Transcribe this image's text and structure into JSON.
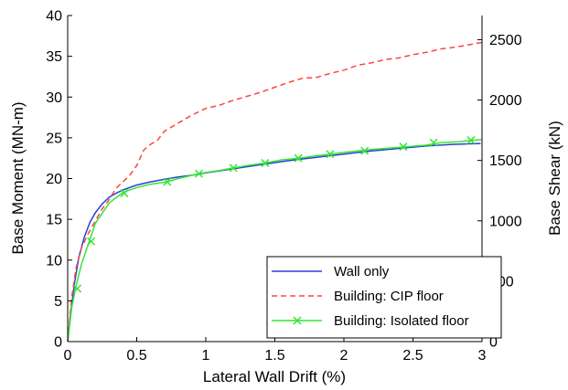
{
  "chart_data": {
    "type": "line",
    "xlabel": "Lateral Wall Drift (%)",
    "ylabel": "Base Moment (MN-m)",
    "y2label": "Base Shear (kN)",
    "xlim": [
      0,
      3
    ],
    "ylim": [
      0,
      40
    ],
    "y2lim": [
      0,
      2700
    ],
    "x_ticks": [
      0,
      0.5,
      1,
      1.5,
      2,
      2.5,
      3
    ],
    "x_tick_labels": [
      "0",
      "0.5",
      "1",
      "1.5",
      "2",
      "2.5",
      "3"
    ],
    "y_ticks": [
      0,
      5,
      10,
      15,
      20,
      25,
      30,
      35,
      40
    ],
    "y_tick_labels": [
      "0",
      "5",
      "10",
      "15",
      "20",
      "25",
      "30",
      "35",
      "40"
    ],
    "y2_ticks": [
      0,
      500,
      1000,
      1500,
      2000,
      2500
    ],
    "y2_tick_labels": [
      "0",
      "500",
      "1000",
      "1500",
      "2000",
      "2500"
    ],
    "grid": false,
    "legend_position": "bottom-right",
    "series": [
      {
        "name": "Wall only",
        "color": "#2b3fd6",
        "style": "solid",
        "x": [
          0,
          0.02,
          0.05,
          0.08,
          0.12,
          0.16,
          0.2,
          0.25,
          0.3,
          0.35,
          0.4,
          0.5,
          0.6,
          0.7,
          0.8,
          0.9,
          1.0,
          1.2,
          1.4,
          1.6,
          1.8,
          2.0,
          2.2,
          2.4,
          2.6,
          2.8,
          2.99
        ],
        "y": [
          0,
          3.2,
          7.2,
          10.3,
          12.8,
          14.6,
          15.8,
          16.9,
          17.7,
          18.2,
          18.6,
          19.2,
          19.6,
          19.9,
          20.2,
          20.4,
          20.7,
          21.2,
          21.7,
          22.2,
          22.6,
          23.0,
          23.4,
          23.7,
          24.0,
          24.2,
          24.3
        ]
      },
      {
        "name": "Building: CIP floor",
        "color": "#ff4444",
        "style": "dashed",
        "x": [
          0,
          0.03,
          0.06,
          0.1,
          0.15,
          0.2,
          0.25,
          0.3,
          0.35,
          0.4,
          0.45,
          0.5,
          0.55,
          0.6,
          0.65,
          0.7,
          0.8,
          0.9,
          1.0,
          1.1,
          1.2,
          1.3,
          1.4,
          1.5,
          1.6,
          1.7,
          1.8,
          1.9,
          2.0,
          2.1,
          2.2,
          2.3,
          2.4,
          2.5,
          2.6,
          2.7,
          2.8,
          2.9,
          3.0
        ],
        "y": [
          0,
          5.5,
          9.0,
          11.5,
          13.3,
          14.8,
          16.3,
          17.4,
          18.8,
          19.6,
          20.4,
          21.6,
          23.5,
          24.2,
          24.7,
          25.8,
          26.8,
          27.8,
          28.6,
          29.0,
          29.6,
          30.1,
          30.6,
          31.2,
          31.8,
          32.3,
          32.4,
          32.9,
          33.3,
          33.9,
          34.2,
          34.6,
          34.8,
          35.2,
          35.5,
          35.9,
          36.1,
          36.4,
          36.7
        ]
      },
      {
        "name": "Building: Isolated floor",
        "color": "#33e633",
        "style": "solid",
        "marker": "x",
        "x": [
          0,
          0.03,
          0.06,
          0.1,
          0.15,
          0.2,
          0.3,
          0.4,
          0.5,
          0.6,
          0.72,
          0.8,
          0.95,
          1.1,
          1.2,
          1.3,
          1.43,
          1.55,
          1.67,
          1.8,
          1.9,
          2.0,
          2.15,
          2.3,
          2.45,
          2.6,
          2.7,
          2.83,
          2.93,
          3.0
        ],
        "y": [
          0,
          4.2,
          6.8,
          9.5,
          12.0,
          14.5,
          17.0,
          18.3,
          18.9,
          19.3,
          19.6,
          20.0,
          20.6,
          21.0,
          21.3,
          21.6,
          21.9,
          22.3,
          22.5,
          22.8,
          23.0,
          23.2,
          23.5,
          23.7,
          23.9,
          24.1,
          24.4,
          24.5,
          24.7,
          24.8
        ],
        "marker_x": [
          0.07,
          0.17,
          0.41,
          0.72,
          0.95,
          1.2,
          1.43,
          1.67,
          1.9,
          2.15,
          2.43,
          2.65,
          2.92
        ],
        "marker_y": [
          6.5,
          12.3,
          18.2,
          19.6,
          20.6,
          21.3,
          21.9,
          22.5,
          23.0,
          23.4,
          23.9,
          24.4,
          24.7
        ]
      }
    ]
  }
}
